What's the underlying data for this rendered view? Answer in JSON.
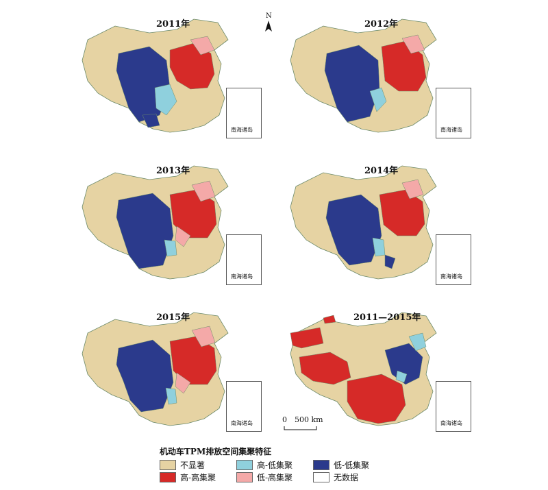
{
  "panels": [
    {
      "title": "2011年",
      "inset_label": "南海诸岛"
    },
    {
      "title": "2012年",
      "inset_label": "南海诸岛"
    },
    {
      "title": "2013年",
      "inset_label": "南海诸岛"
    },
    {
      "title": "2014年",
      "inset_label": "南海诸岛"
    },
    {
      "title": "2015年",
      "inset_label": "南海诸岛"
    },
    {
      "title": "2011—2015年",
      "inset_label": "南海诸岛"
    }
  ],
  "north_label": "N",
  "scale": {
    "zero": "0",
    "label": "500 km"
  },
  "legend": {
    "title": "机动车TPM排放空间集聚特征",
    "items": [
      {
        "label": "不显著",
        "color": "#e6d3a3"
      },
      {
        "label": "高-高集聚",
        "color": "#d62a28"
      },
      {
        "label": "高-低集聚",
        "color": "#8fd0dd"
      },
      {
        "label": "低-高集聚",
        "color": "#f4a9a8"
      },
      {
        "label": "低-低集聚",
        "color": "#2b3a8c"
      },
      {
        "label": "无数据",
        "color": "#ffffff"
      }
    ]
  },
  "colors": {
    "not_significant": "#e6d3a3",
    "high_high": "#d62a28",
    "high_low": "#8fd0dd",
    "low_high": "#f4a9a8",
    "low_low": "#2b3a8c",
    "boundary": "#6b8a6a"
  }
}
